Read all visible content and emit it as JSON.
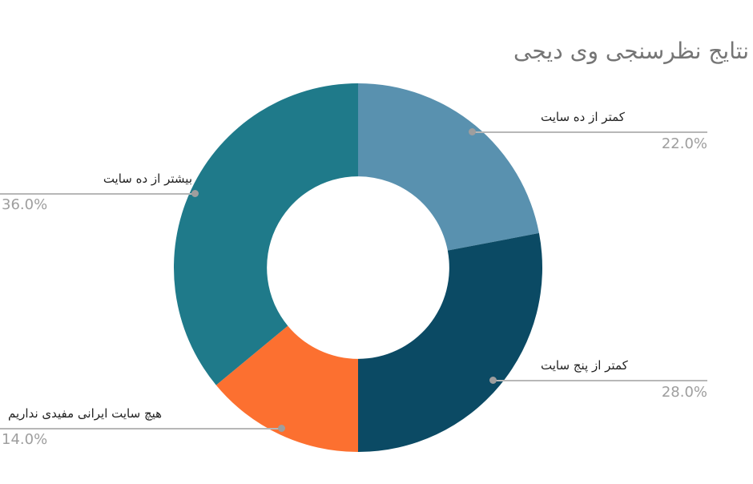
{
  "page": {
    "background": "#ffffff"
  },
  "chart_data": {
    "type": "pie",
    "donut": true,
    "inner_radius_ratio": 0.495,
    "start_angle_deg": 0,
    "direction": "clockwise",
    "title": "نتایج نظرسنجی وی دیجی",
    "legend": "none",
    "categories": [
      "کمتر از ده سایت",
      "کمتر از پنج سایت",
      "هیچ سایت ایرانی مفیدی نداریم",
      "بیشتر از ده سایت"
    ],
    "values": [
      22,
      28,
      14,
      36
    ],
    "percent_labels": [
      "22.0%",
      "28.0%",
      "14.0%",
      "36.0%"
    ],
    "colors": [
      "#5991af",
      "#0b4a64",
      "#fc7030",
      "#1f7a8a"
    ],
    "title_color": "#757575",
    "category_label_color": "#222222",
    "percent_label_color": "#9e9e9e",
    "callout_line_color": "#b7b7b7",
    "callout_dot_color": "#9e9e9e"
  }
}
